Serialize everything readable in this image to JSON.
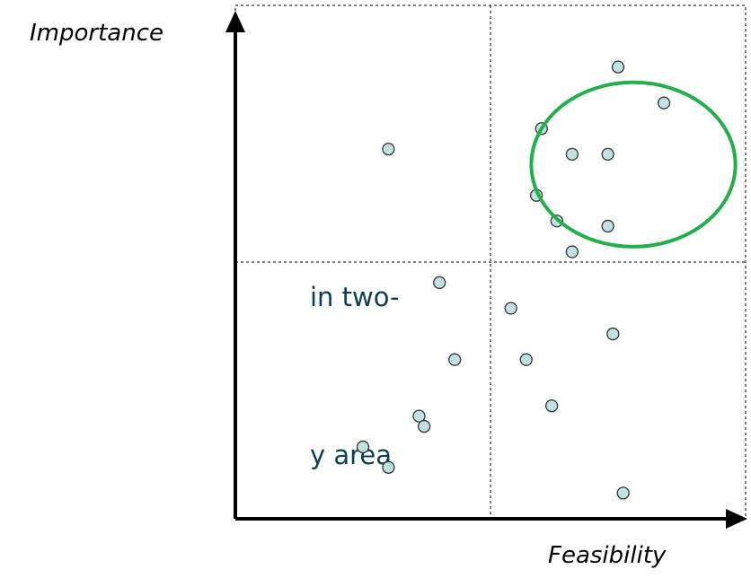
{
  "text_fragments": [
    "in two-",
    "y area"
  ],
  "chart_data": {
    "type": "scatter",
    "title": "",
    "xlabel": "Feasibility",
    "ylabel": "Importance",
    "xlim": [
      0,
      10
    ],
    "ylim": [
      0,
      10
    ],
    "midlines": {
      "x": 5,
      "y": 5
    },
    "grid": false,
    "colors": {
      "point_fill": "#c2e2e2",
      "point_stroke": "#333333",
      "highlight": "#22b04b",
      "axis": "#000000"
    },
    "points": [
      {
        "x": 7.5,
        "y": 8.8
      },
      {
        "x": 8.4,
        "y": 8.1
      },
      {
        "x": 6.0,
        "y": 7.6
      },
      {
        "x": 6.6,
        "y": 7.1
      },
      {
        "x": 7.3,
        "y": 7.1
      },
      {
        "x": 3.0,
        "y": 7.2
      },
      {
        "x": 5.9,
        "y": 6.3
      },
      {
        "x": 6.3,
        "y": 5.8
      },
      {
        "x": 7.3,
        "y": 5.7
      },
      {
        "x": 6.6,
        "y": 5.2
      },
      {
        "x": 4.0,
        "y": 4.6
      },
      {
        "x": 5.4,
        "y": 4.1
      },
      {
        "x": 7.4,
        "y": 3.6
      },
      {
        "x": 4.3,
        "y": 3.1
      },
      {
        "x": 5.7,
        "y": 3.1
      },
      {
        "x": 6.2,
        "y": 2.2
      },
      {
        "x": 3.6,
        "y": 2.0
      },
      {
        "x": 3.7,
        "y": 1.8
      },
      {
        "x": 2.5,
        "y": 1.4
      },
      {
        "x": 3.0,
        "y": 1.0
      },
      {
        "x": 7.6,
        "y": 0.5
      }
    ],
    "highlight_region": {
      "shape": "ellipse",
      "cx": 7.8,
      "cy": 6.9,
      "rx": 2.0,
      "ry": 1.6,
      "color": "#22b04b"
    }
  }
}
